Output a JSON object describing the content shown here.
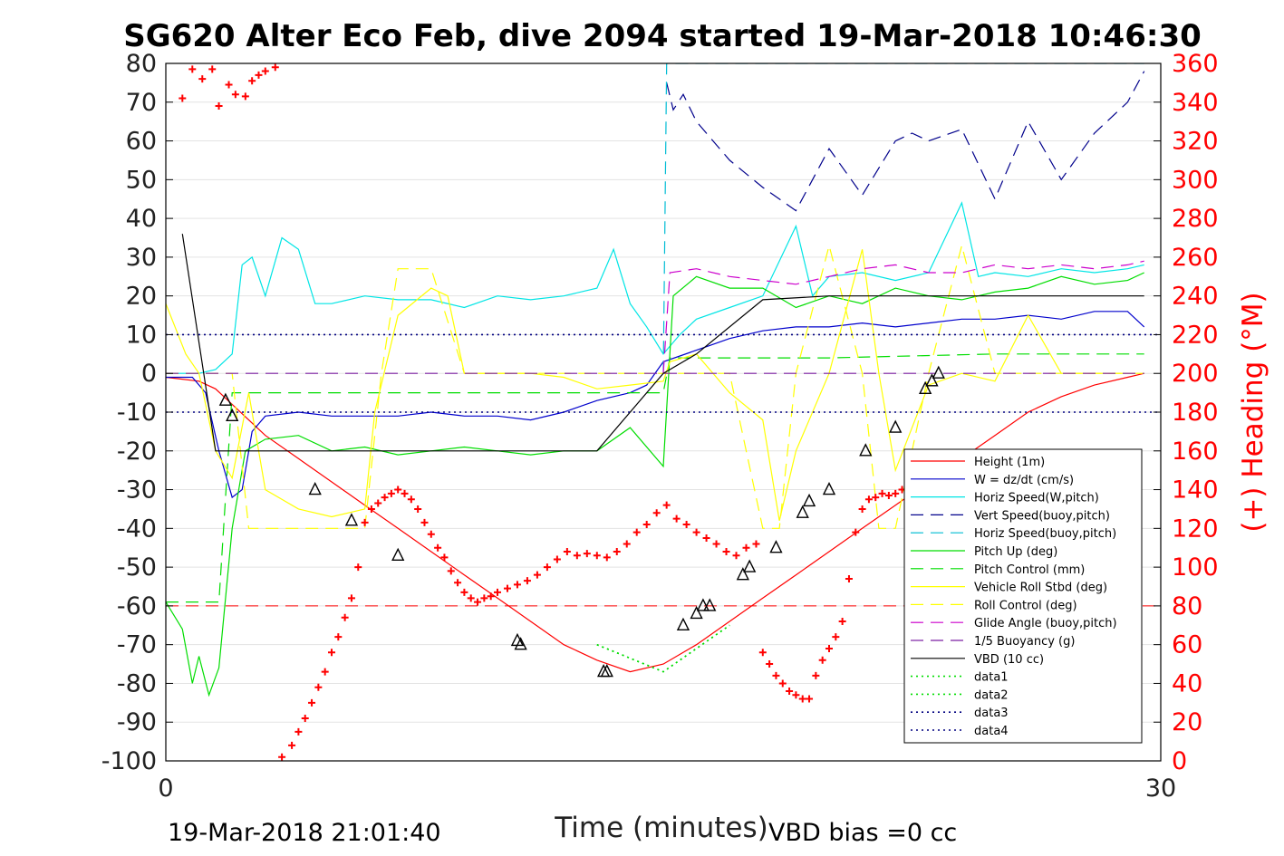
{
  "chart_data": {
    "type": "line",
    "title": "SG620 Alter Eco Feb, dive 2094 started 19-Mar-2018 10:46:30",
    "xlabel": "Time (minutes)",
    "ylabel_right": "(+) Heading (°M)",
    "xlim": [
      0,
      30
    ],
    "ylim_left": [
      -100,
      80
    ],
    "ylim_right": [
      0,
      360
    ],
    "x_ticks": [
      "0",
      "30"
    ],
    "y_ticks_left": [
      "-100",
      "-90",
      "-80",
      "-70",
      "-60",
      "-50",
      "-40",
      "-30",
      "-20",
      "-10",
      "0",
      "10",
      "20",
      "30",
      "40",
      "50",
      "60",
      "70",
      "80"
    ],
    "y_ticks_right": [
      "0",
      "20",
      "40",
      "60",
      "80",
      "100",
      "120",
      "140",
      "160",
      "180",
      "200",
      "220",
      "240",
      "260",
      "280",
      "300",
      "320",
      "340",
      "360"
    ],
    "grid": "horizontal",
    "legend_position": "bottom-right",
    "footer_left": "19-Mar-2018 21:01:40",
    "footer_right": "VBD bias =0 cc",
    "colors": {
      "red": "#ff0000",
      "blue": "#0000cc",
      "cyan": "#00e5e5",
      "vblue": "#00008b",
      "hcyan": "#00bcd4",
      "green": "#00dd00",
      "yellow": "#ffff00",
      "magenta": "#cc00cc",
      "purple": "#7b1fa2",
      "black": "#000000",
      "dkblue": "#000080"
    },
    "series": [
      {
        "name": "Height (1m)",
        "key": "red",
        "style": "solid",
        "x": [
          0,
          1,
          1.5,
          2,
          2.5,
          3,
          4,
          5,
          6,
          7,
          8,
          9,
          10,
          11,
          12,
          13,
          14,
          15,
          16,
          17,
          18,
          19,
          20,
          21,
          22,
          23,
          24,
          25,
          26,
          27,
          28,
          29,
          29.5
        ],
        "y": [
          -1,
          -2,
          -4,
          -8,
          -12,
          -16,
          -22,
          -28,
          -34,
          -40,
          -46,
          -52,
          -58,
          -64,
          -70,
          -74,
          -77,
          -75,
          -70,
          -64,
          -58,
          -52,
          -46,
          -40,
          -34,
          -28,
          -22,
          -16,
          -10,
          -6,
          -3,
          -1,
          0
        ]
      },
      {
        "name": "W = dz/dt (cm/s)",
        "key": "blue",
        "style": "solid",
        "x": [
          0,
          0.8,
          1.2,
          1.6,
          2,
          2.3,
          2.6,
          3,
          4,
          5,
          6,
          7,
          8,
          9,
          10,
          11,
          12,
          13,
          14,
          14.5,
          15,
          16,
          17,
          18,
          19,
          20,
          21,
          22,
          23,
          24,
          25,
          26,
          27,
          28,
          29,
          29.5
        ],
        "y": [
          -1,
          -1,
          -5,
          -20,
          -32,
          -30,
          -15,
          -11,
          -10,
          -11,
          -11,
          -11,
          -10,
          -11,
          -11,
          -12,
          -10,
          -7,
          -5,
          -3,
          3,
          6,
          9,
          11,
          12,
          12,
          13,
          12,
          13,
          14,
          14,
          15,
          14,
          16,
          16,
          12
        ]
      },
      {
        "name": "Horiz Speed(W,pitch)",
        "key": "cyan",
        "style": "solid",
        "x": [
          0,
          1,
          1.5,
          2,
          2.3,
          2.6,
          3,
          3.5,
          4,
          4.5,
          5,
          6,
          7,
          8,
          9,
          10,
          11,
          12,
          13,
          13.5,
          14,
          14.5,
          15,
          15.5,
          16,
          17,
          18,
          19,
          19.5,
          20,
          21,
          22,
          23,
          24,
          24.5,
          25,
          26,
          27,
          28,
          29,
          29.5
        ],
        "y": [
          0,
          0,
          1,
          5,
          28,
          30,
          20,
          35,
          32,
          18,
          18,
          20,
          19,
          19,
          17,
          20,
          19,
          20,
          22,
          32,
          18,
          12,
          5,
          10,
          14,
          17,
          20,
          38,
          20,
          25,
          26,
          24,
          26,
          44,
          25,
          26,
          25,
          27,
          26,
          27,
          28
        ]
      },
      {
        "name": "Vert Speed(buoy,pitch)",
        "key": "vblue",
        "style": "dashed",
        "x": [
          15.1,
          15.3,
          15.6,
          16,
          16.5,
          17,
          18,
          19,
          20,
          20.5,
          21,
          22,
          22.5,
          23,
          24,
          25,
          26,
          27,
          28,
          29,
          29.5
        ],
        "y": [
          75,
          68,
          72,
          65,
          60,
          55,
          48,
          42,
          58,
          52,
          46,
          60,
          62,
          60,
          63,
          45,
          65,
          50,
          62,
          70,
          78
        ]
      },
      {
        "name": "Horiz Speed(buoy,pitch)",
        "key": "hcyan",
        "style": "dashed",
        "x": [
          15,
          15.1,
          16,
          29.5
        ],
        "y": [
          0,
          80,
          80,
          80
        ]
      },
      {
        "name": "Pitch Up (deg)",
        "key": "green",
        "style": "solid",
        "x": [
          0,
          0.5,
          0.8,
          1,
          1.3,
          1.6,
          2,
          2.4,
          3,
          4,
          5,
          6,
          7,
          8,
          9,
          10,
          11,
          12,
          13,
          14,
          15,
          15.3,
          16,
          17,
          18,
          19,
          20,
          21,
          22,
          23,
          24,
          25,
          26,
          27,
          28,
          29,
          29.5
        ],
        "y": [
          -59,
          -66,
          -80,
          -73,
          -83,
          -76,
          -40,
          -20,
          -17,
          -16,
          -20,
          -19,
          -21,
          -20,
          -19,
          -20,
          -21,
          -20,
          -20,
          -14,
          -24,
          20,
          25,
          22,
          22,
          17,
          20,
          18,
          22,
          20,
          19,
          21,
          22,
          25,
          23,
          24,
          26
        ]
      },
      {
        "name": "Pitch Control (mm)",
        "key": "green",
        "style": "dashed",
        "x": [
          0,
          1.6,
          2,
          4,
          8,
          12,
          15,
          15.2,
          20,
          25,
          29.5
        ],
        "y": [
          -59,
          -59,
          -5,
          -5,
          -5,
          -5,
          -5,
          4,
          4,
          5,
          5
        ]
      },
      {
        "name": "Vehicle Roll Stbd (deg)",
        "key": "yellow",
        "style": "solid",
        "x": [
          0,
          0.6,
          1,
          1.5,
          2,
          2.5,
          3,
          4,
          5,
          6,
          6.3,
          7,
          8,
          8.5,
          9,
          10,
          11,
          12,
          13,
          14,
          15,
          15.2,
          16,
          17,
          18,
          18.5,
          19,
          20,
          21,
          21.5,
          22,
          23,
          24,
          25,
          26,
          27,
          28,
          29,
          29.5
        ],
        "y": [
          18,
          5,
          0,
          -20,
          -27,
          -5,
          -30,
          -35,
          -37,
          -35,
          -10,
          15,
          22,
          20,
          0,
          0,
          0,
          -1,
          -4,
          -3,
          -2,
          3,
          5,
          -5,
          -12,
          -38,
          -20,
          0,
          32,
          0,
          -25,
          -3,
          0,
          -2,
          15,
          0,
          0,
          0,
          0
        ]
      },
      {
        "name": "Roll Control (deg)",
        "key": "yellow",
        "style": "dashed",
        "x": [
          0,
          2,
          2.5,
          4,
          6,
          6.5,
          7,
          8,
          9,
          10,
          12,
          14,
          15,
          16,
          17,
          18,
          18.5,
          19,
          20,
          21,
          21.5,
          22,
          23,
          24,
          25,
          26,
          27,
          28,
          29
        ],
        "y": [
          0,
          0,
          -40,
          -40,
          -40,
          0,
          27,
          27,
          0,
          0,
          0,
          0,
          0,
          0,
          0,
          -40,
          -40,
          0,
          33,
          0,
          -40,
          -40,
          0,
          33,
          0,
          0,
          0,
          0,
          0
        ]
      },
      {
        "name": "Glide Angle (buoy,pitch)",
        "key": "magenta",
        "style": "dashed",
        "x": [
          15,
          15.2,
          16,
          17,
          18,
          19,
          20,
          21,
          22,
          23,
          24,
          25,
          26,
          27,
          28,
          29,
          29.5
        ],
        "y": [
          0,
          26,
          27,
          25,
          24,
          23,
          25,
          27,
          28,
          26,
          26,
          28,
          27,
          28,
          27,
          28,
          29
        ]
      },
      {
        "name": "1/5 Buoyancy (g)",
        "key": "purple",
        "style": "dashed",
        "x": [
          0,
          29.5
        ],
        "y": [
          0,
          0
        ]
      },
      {
        "name": "VBD (10 cc)",
        "key": "black",
        "style": "solid",
        "x": [
          0.5,
          1.5,
          2,
          13,
          15,
          16,
          18,
          20,
          29.5
        ],
        "y": [
          36,
          -20,
          -20,
          -20,
          0,
          5,
          19,
          20,
          20
        ]
      },
      {
        "name": "data1",
        "key": "green",
        "style": "dotted",
        "x": [
          13,
          15,
          17
        ],
        "y": [
          -70,
          -77,
          -65
        ]
      },
      {
        "name": "data2",
        "key": "green",
        "style": "dotted",
        "x": [
          13,
          15,
          17
        ],
        "y": [
          -70,
          -77,
          -65
        ]
      },
      {
        "name": "data3",
        "key": "dkblue",
        "style": "dotted",
        "x": [
          0,
          30
        ],
        "y": [
          10,
          10
        ]
      },
      {
        "name": "data4",
        "key": "dkblue",
        "style": "dotted",
        "x": [
          0,
          30
        ],
        "y": [
          -10,
          -10
        ]
      }
    ],
    "red_hline_y": -60,
    "heading": {
      "name": "(+) Heading (°M)",
      "x": [
        0.5,
        0.8,
        1.1,
        1.4,
        1.6,
        1.9,
        2.1,
        2.4,
        2.6,
        2.8,
        3.0,
        3.3,
        3.5,
        3.8,
        4.0,
        4.2,
        4.4,
        4.6,
        4.8,
        5.0,
        5.2,
        5.4,
        5.6,
        5.8,
        6.0,
        6.2,
        6.4,
        6.6,
        6.8,
        7.0,
        7.2,
        7.4,
        7.6,
        7.8,
        8.0,
        8.2,
        8.4,
        8.6,
        8.8,
        9.0,
        9.2,
        9.4,
        9.6,
        9.8,
        10.0,
        10.3,
        10.6,
        10.9,
        11.2,
        11.5,
        11.8,
        12.1,
        12.4,
        12.7,
        13.0,
        13.3,
        13.6,
        13.9,
        14.2,
        14.5,
        14.8,
        15.1,
        15.4,
        15.7,
        16.0,
        16.3,
        16.6,
        16.9,
        17.2,
        17.5,
        17.8,
        18.0,
        18.2,
        18.4,
        18.6,
        18.8,
        19.0,
        19.2,
        19.4,
        19.6,
        19.8,
        20.0,
        20.2,
        20.4,
        20.6,
        20.8,
        21.0,
        21.2,
        21.4,
        21.6,
        21.8,
        22.0,
        22.2,
        22.4,
        22.6,
        22.8,
        23.0,
        23.2,
        23.4,
        23.6,
        23.8,
        24.0,
        24.2,
        24.4,
        24.6,
        24.8,
        25.0,
        25.2,
        25.4,
        25.6,
        25.8,
        26.0,
        26.2,
        26.4,
        26.6,
        26.8,
        27.0,
        27.2,
        27.4,
        27.6,
        27.8,
        28.0
      ],
      "y": [
        342,
        357,
        352,
        357,
        338,
        349,
        344,
        343,
        351,
        354,
        356,
        358,
        2,
        8,
        15,
        22,
        30,
        38,
        46,
        56,
        64,
        74,
        84,
        100,
        123,
        130,
        133,
        136,
        138,
        140,
        138,
        135,
        130,
        123,
        117,
        110,
        105,
        98,
        92,
        87,
        84,
        82,
        84,
        85,
        87,
        89,
        91,
        93,
        96,
        100,
        104,
        108,
        106,
        107,
        106,
        105,
        108,
        112,
        118,
        122,
        128,
        132,
        125,
        122,
        118,
        115,
        112,
        108,
        106,
        110,
        112,
        56,
        50,
        44,
        40,
        36,
        34,
        32,
        32,
        44,
        52,
        58,
        64,
        72,
        94,
        118,
        130,
        135,
        136,
        138,
        137,
        138,
        140,
        100,
        58,
        70,
        62,
        58,
        56,
        60,
        58,
        56,
        64,
        80,
        98,
        110,
        120,
        124,
        128,
        130,
        132,
        135,
        138,
        140,
        142,
        144,
        146,
        148,
        150,
        152,
        154,
        156
      ]
    },
    "triangles": [
      {
        "x": 1.8,
        "y": -7
      },
      {
        "x": 2.0,
        "y": -11
      },
      {
        "x": 4.5,
        "y": -30
      },
      {
        "x": 5.6,
        "y": -38
      },
      {
        "x": 7.0,
        "y": -47
      },
      {
        "x": 10.6,
        "y": -69
      },
      {
        "x": 10.7,
        "y": -70
      },
      {
        "x": 13.2,
        "y": -77
      },
      {
        "x": 13.3,
        "y": -77
      },
      {
        "x": 15.6,
        "y": -65
      },
      {
        "x": 16.0,
        "y": -62
      },
      {
        "x": 16.2,
        "y": -60
      },
      {
        "x": 16.4,
        "y": -60
      },
      {
        "x": 17.4,
        "y": -52
      },
      {
        "x": 17.6,
        "y": -50
      },
      {
        "x": 18.4,
        "y": -45
      },
      {
        "x": 19.2,
        "y": -36
      },
      {
        "x": 19.4,
        "y": -33
      },
      {
        "x": 20.0,
        "y": -30
      },
      {
        "x": 21.1,
        "y": -20
      },
      {
        "x": 22.0,
        "y": -14
      },
      {
        "x": 22.9,
        "y": -4
      },
      {
        "x": 23.1,
        "y": -2
      },
      {
        "x": 23.3,
        "y": 0
      }
    ]
  }
}
